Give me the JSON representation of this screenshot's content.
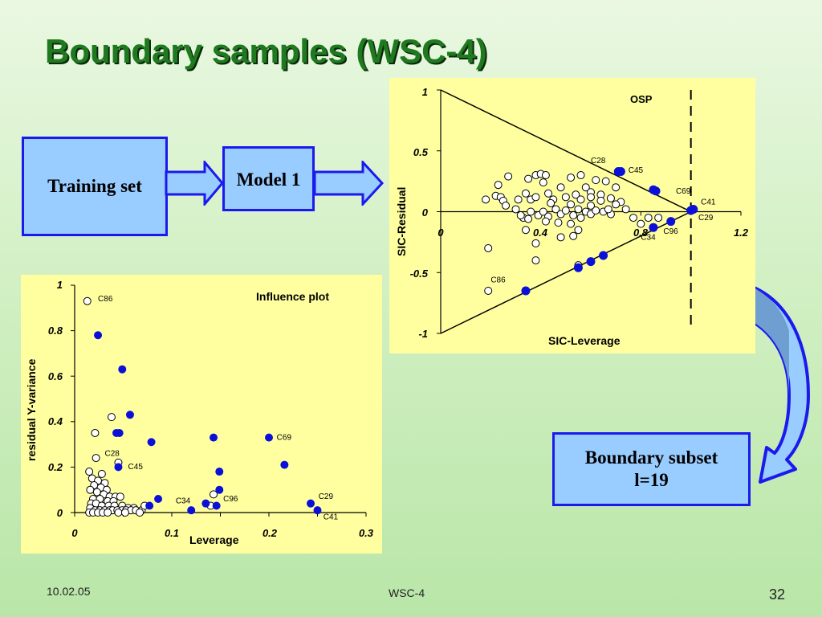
{
  "slide": {
    "title": "Boundary samples (WSC-4)",
    "colors": {
      "title": "#1f7a1f",
      "box_fill": "#99ccff",
      "box_border": "#1a1aee",
      "panel": "#ffffa0",
      "filled_point": "#0a10d8"
    }
  },
  "flow": {
    "training_set": "Training set",
    "model": "Model 1",
    "boundary_subset_line1": "Boundary subset",
    "boundary_subset_line2": "l=19"
  },
  "footer": {
    "date": "10.02.05",
    "center": "WSC-4",
    "page": "32"
  },
  "chart_data": [
    {
      "type": "scatter",
      "title": "OSP",
      "xlabel": "SIC-Leverage",
      "ylabel": "SIC-Residual",
      "xlim": [
        0,
        1.2
      ],
      "ylim": [
        -1,
        1
      ],
      "xticks": [
        "0",
        "0.4",
        "0.8",
        "1.2"
      ],
      "yticks": [
        "-1",
        "-0.5",
        "0",
        "0.5",
        "1"
      ],
      "threshold_x": 1.0,
      "open_points": [
        [
          0.18,
          0.1
        ],
        [
          0.22,
          0.13
        ],
        [
          0.24,
          0.12
        ],
        [
          0.23,
          0.22
        ],
        [
          0.27,
          0.29
        ],
        [
          0.25,
          0.09
        ],
        [
          0.26,
          0.05
        ],
        [
          0.31,
          0.1
        ],
        [
          0.35,
          0.27
        ],
        [
          0.36,
          0.1
        ],
        [
          0.38,
          0.3
        ],
        [
          0.4,
          0.31
        ],
        [
          0.42,
          0.3
        ],
        [
          0.41,
          0.24
        ],
        [
          0.43,
          0.15
        ],
        [
          0.45,
          0.1
        ],
        [
          0.48,
          0.2
        ],
        [
          0.5,
          0.12
        ],
        [
          0.52,
          0.28
        ],
        [
          0.54,
          0.14
        ],
        [
          0.56,
          0.3
        ],
        [
          0.58,
          0.2
        ],
        [
          0.6,
          0.16
        ],
        [
          0.62,
          0.26
        ],
        [
          0.64,
          0.14
        ],
        [
          0.66,
          0.25
        ],
        [
          0.68,
          0.11
        ],
        [
          0.7,
          0.2
        ],
        [
          0.72,
          0.08
        ],
        [
          0.34,
          0.15
        ],
        [
          0.38,
          0.12
        ],
        [
          0.44,
          0.07
        ],
        [
          0.3,
          0.02
        ],
        [
          0.33,
          -0.05
        ],
        [
          0.36,
          0.0
        ],
        [
          0.39,
          -0.03
        ],
        [
          0.41,
          0.0
        ],
        [
          0.43,
          -0.04
        ],
        [
          0.46,
          0.02
        ],
        [
          0.48,
          -0.02
        ],
        [
          0.5,
          0.01
        ],
        [
          0.53,
          -0.03
        ],
        [
          0.55,
          0.02
        ],
        [
          0.58,
          0.0
        ],
        [
          0.6,
          -0.02
        ],
        [
          0.62,
          0.01
        ],
        [
          0.65,
          0.0
        ],
        [
          0.68,
          -0.02
        ],
        [
          0.7,
          0.06
        ],
        [
          0.74,
          0.02
        ],
        [
          0.77,
          -0.05
        ],
        [
          0.32,
          -0.03
        ],
        [
          0.35,
          -0.06
        ],
        [
          0.42,
          -0.08
        ],
        [
          0.47,
          -0.09
        ],
        [
          0.52,
          -0.1
        ],
        [
          0.56,
          -0.05
        ],
        [
          0.6,
          0.05
        ],
        [
          0.64,
          0.09
        ],
        [
          0.67,
          0.02
        ],
        [
          0.52,
          0.06
        ],
        [
          0.56,
          0.1
        ],
        [
          0.6,
          0.12
        ],
        [
          0.34,
          -0.15
        ],
        [
          0.38,
          -0.26
        ],
        [
          0.48,
          -0.21
        ],
        [
          0.53,
          -0.2
        ],
        [
          0.55,
          -0.15
        ],
        [
          0.38,
          -0.4
        ],
        [
          0.55,
          -0.44
        ],
        [
          0.19,
          -0.3
        ],
        [
          0.19,
          -0.65
        ],
        [
          0.8,
          -0.1
        ],
        [
          0.83,
          -0.05
        ],
        [
          0.87,
          -0.05
        ]
      ],
      "filled_points": [
        [
          0.34,
          -0.65
        ],
        [
          0.55,
          -0.46
        ],
        [
          0.6,
          -0.41
        ],
        [
          0.65,
          -0.36
        ],
        [
          0.71,
          0.33
        ],
        [
          0.72,
          0.33
        ],
        [
          0.85,
          0.18
        ],
        [
          0.86,
          0.17
        ],
        [
          0.85,
          -0.13
        ],
        [
          0.92,
          -0.08
        ],
        [
          1.0,
          0.01
        ],
        [
          1.01,
          0.02
        ]
      ],
      "annotations": [
        {
          "text": "C28",
          "x": 0.6,
          "y": 0.4
        },
        {
          "text": "C45",
          "x": 0.75,
          "y": 0.32
        },
        {
          "text": "C69",
          "x": 0.94,
          "y": 0.15
        },
        {
          "text": "C41",
          "x": 1.04,
          "y": 0.06
        },
        {
          "text": "C29",
          "x": 1.03,
          "y": -0.07
        },
        {
          "text": "C96",
          "x": 0.89,
          "y": -0.18
        },
        {
          "text": "C34",
          "x": 0.8,
          "y": -0.23
        },
        {
          "text": "C86",
          "x": 0.2,
          "y": -0.58
        }
      ]
    },
    {
      "type": "scatter",
      "title": "Influence plot",
      "xlabel": "Leverage",
      "ylabel": "residual Y-variance",
      "xlim": [
        0,
        0.3
      ],
      "ylim": [
        0,
        1
      ],
      "xticks": [
        "0",
        "0.1",
        "0.2",
        "0.3"
      ],
      "yticks": [
        "0",
        "0.2",
        "0.4",
        "0.6",
        "0.8",
        "1"
      ],
      "open_points": [
        [
          0.013,
          0.93
        ],
        [
          0.038,
          0.42
        ],
        [
          0.021,
          0.35
        ],
        [
          0.022,
          0.24
        ],
        [
          0.045,
          0.22
        ],
        [
          0.015,
          0.18
        ],
        [
          0.028,
          0.17
        ],
        [
          0.018,
          0.15
        ],
        [
          0.024,
          0.14
        ],
        [
          0.031,
          0.13
        ],
        [
          0.02,
          0.12
        ],
        [
          0.027,
          0.11
        ],
        [
          0.033,
          0.1
        ],
        [
          0.016,
          0.1
        ],
        [
          0.023,
          0.09
        ],
        [
          0.03,
          0.08
        ],
        [
          0.036,
          0.07
        ],
        [
          0.042,
          0.07
        ],
        [
          0.047,
          0.07
        ],
        [
          0.019,
          0.06
        ],
        [
          0.026,
          0.06
        ],
        [
          0.034,
          0.05
        ],
        [
          0.04,
          0.05
        ],
        [
          0.017,
          0.04
        ],
        [
          0.022,
          0.04
        ],
        [
          0.028,
          0.03
        ],
        [
          0.035,
          0.03
        ],
        [
          0.041,
          0.03
        ],
        [
          0.049,
          0.03
        ],
        [
          0.055,
          0.02
        ],
        [
          0.061,
          0.02
        ],
        [
          0.016,
          0.02
        ],
        [
          0.021,
          0.01
        ],
        [
          0.026,
          0.01
        ],
        [
          0.031,
          0.01
        ],
        [
          0.036,
          0.01
        ],
        [
          0.039,
          0.01
        ],
        [
          0.044,
          0.01
        ],
        [
          0.049,
          0.01
        ],
        [
          0.053,
          0.01
        ],
        [
          0.058,
          0.01
        ],
        [
          0.063,
          0.01
        ],
        [
          0.069,
          0.01
        ],
        [
          0.072,
          0.03
        ],
        [
          0.14,
          0.03
        ],
        [
          0.143,
          0.08
        ],
        [
          0.015,
          0.0
        ],
        [
          0.019,
          0.0
        ],
        [
          0.024,
          0.0
        ],
        [
          0.029,
          0.0
        ],
        [
          0.034,
          0.0
        ],
        [
          0.045,
          0.0
        ],
        [
          0.052,
          0.0
        ],
        [
          0.067,
          0.0
        ]
      ],
      "filled_points": [
        [
          0.024,
          0.78
        ],
        [
          0.049,
          0.63
        ],
        [
          0.057,
          0.43
        ],
        [
          0.043,
          0.35
        ],
        [
          0.046,
          0.35
        ],
        [
          0.079,
          0.31
        ],
        [
          0.143,
          0.33
        ],
        [
          0.2,
          0.33
        ],
        [
          0.216,
          0.21
        ],
        [
          0.149,
          0.18
        ],
        [
          0.045,
          0.2
        ],
        [
          0.149,
          0.1
        ],
        [
          0.086,
          0.06
        ],
        [
          0.077,
          0.03
        ],
        [
          0.12,
          0.01
        ],
        [
          0.135,
          0.04
        ],
        [
          0.146,
          0.03
        ],
        [
          0.243,
          0.04
        ],
        [
          0.25,
          0.01
        ]
      ],
      "annotations": [
        {
          "text": "C86",
          "x": 0.024,
          "y": 0.93
        },
        {
          "text": "C28",
          "x": 0.031,
          "y": 0.25
        },
        {
          "text": "C45",
          "x": 0.055,
          "y": 0.19
        },
        {
          "text": "C69",
          "x": 0.208,
          "y": 0.32
        },
        {
          "text": "C34",
          "x": 0.104,
          "y": 0.04
        },
        {
          "text": "C96",
          "x": 0.153,
          "y": 0.05
        },
        {
          "text": "C29",
          "x": 0.251,
          "y": 0.06
        },
        {
          "text": "C41",
          "x": 0.256,
          "y": -0.03
        }
      ]
    }
  ]
}
